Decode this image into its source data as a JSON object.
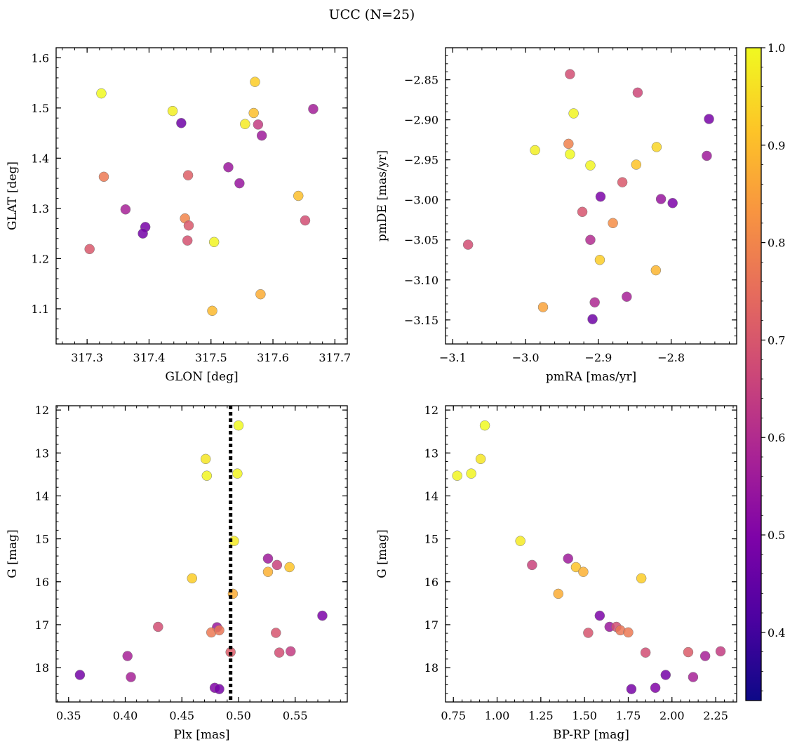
{
  "chart_data": {
    "type": "scatter",
    "title": "UCC (N=25)",
    "colorbar": {
      "colormap": "plasma",
      "range": [
        0.33,
        1.0
      ],
      "ticks": [
        "0.4",
        "0.5",
        "0.6",
        "0.7",
        "0.8",
        "0.9",
        "1.0"
      ],
      "tick_values": [
        0.4,
        0.5,
        0.6,
        0.7,
        0.8,
        0.9,
        1.0
      ]
    },
    "panels": [
      {
        "xlabel": "GLON [deg]",
        "ylabel": "GLAT [deg]",
        "xlim": [
          317.25,
          317.72
        ],
        "ylim": [
          1.03,
          1.62
        ],
        "inverted_y": false,
        "xticks": [
          {
            "v": 317.3,
            "label": "317.3"
          },
          {
            "v": 317.4,
            "label": "317.4"
          },
          {
            "v": 317.5,
            "label": "317.5"
          },
          {
            "v": 317.6,
            "label": "317.6"
          },
          {
            "v": 317.7,
            "label": "317.7"
          }
        ],
        "yticks": [
          {
            "v": 1.1,
            "label": "1.1"
          },
          {
            "v": 1.2,
            "label": "1.2"
          },
          {
            "v": 1.3,
            "label": "1.3"
          },
          {
            "v": 1.4,
            "label": "1.4"
          },
          {
            "v": 1.5,
            "label": "1.5"
          },
          {
            "v": 1.6,
            "label": "1.6"
          }
        ],
        "points": [
          {
            "x": 317.323,
            "y": 1.529,
            "c": 1.0
          },
          {
            "x": 317.438,
            "y": 1.494,
            "c": 0.98
          },
          {
            "x": 317.452,
            "y": 1.47,
            "c": 0.34
          },
          {
            "x": 317.571,
            "y": 1.552,
            "c": 0.91
          },
          {
            "x": 317.569,
            "y": 1.49,
            "c": 0.88
          },
          {
            "x": 317.555,
            "y": 1.468,
            "c": 0.97
          },
          {
            "x": 317.576,
            "y": 1.467,
            "c": 0.55
          },
          {
            "x": 317.582,
            "y": 1.445,
            "c": 0.45
          },
          {
            "x": 317.665,
            "y": 1.498,
            "c": 0.46
          },
          {
            "x": 317.528,
            "y": 1.382,
            "c": 0.44
          },
          {
            "x": 317.546,
            "y": 1.35,
            "c": 0.43
          },
          {
            "x": 317.327,
            "y": 1.363,
            "c": 0.72
          },
          {
            "x": 317.463,
            "y": 1.366,
            "c": 0.65
          },
          {
            "x": 317.362,
            "y": 1.298,
            "c": 0.47
          },
          {
            "x": 317.394,
            "y": 1.263,
            "c": 0.36
          },
          {
            "x": 317.39,
            "y": 1.25,
            "c": 0.35
          },
          {
            "x": 317.458,
            "y": 1.28,
            "c": 0.75
          },
          {
            "x": 317.464,
            "y": 1.266,
            "c": 0.63
          },
          {
            "x": 317.462,
            "y": 1.236,
            "c": 0.61
          },
          {
            "x": 317.505,
            "y": 1.233,
            "c": 0.99
          },
          {
            "x": 317.641,
            "y": 1.325,
            "c": 0.88
          },
          {
            "x": 317.652,
            "y": 1.276,
            "c": 0.6
          },
          {
            "x": 317.304,
            "y": 1.219,
            "c": 0.63
          },
          {
            "x": 317.58,
            "y": 1.129,
            "c": 0.84
          },
          {
            "x": 317.502,
            "y": 1.096,
            "c": 0.87
          }
        ]
      },
      {
        "xlabel": "pmRA [mas/yr]",
        "ylabel": "pmDE [mas/yr]",
        "xlim": [
          -3.11,
          -2.71
        ],
        "ylim": [
          -3.18,
          -2.81
        ],
        "inverted_y": false,
        "xticks": [
          {
            "v": -3.1,
            "label": "−3.1"
          },
          {
            "v": -3.0,
            "label": "−3.0"
          },
          {
            "v": -2.9,
            "label": "−2.9"
          },
          {
            "v": -2.8,
            "label": "−2.8"
          }
        ],
        "yticks": [
          {
            "v": -3.15,
            "label": "−3.15"
          },
          {
            "v": -3.1,
            "label": "−3.10"
          },
          {
            "v": -3.05,
            "label": "−3.05"
          },
          {
            "v": -3.0,
            "label": "−3.00"
          },
          {
            "v": -2.95,
            "label": "−2.95"
          },
          {
            "v": -2.9,
            "label": "−2.90"
          },
          {
            "v": -2.85,
            "label": "−2.85"
          }
        ],
        "points": [
          {
            "x": -2.939,
            "y": -2.843,
            "c": 0.6
          },
          {
            "x": -2.846,
            "y": -2.866,
            "c": 0.58
          },
          {
            "x": -2.934,
            "y": -2.892,
            "c": 0.99
          },
          {
            "x": -2.748,
            "y": -2.899,
            "c": 0.36
          },
          {
            "x": -2.987,
            "y": -2.938,
            "c": 0.98
          },
          {
            "x": -2.941,
            "y": -2.93,
            "c": 0.74
          },
          {
            "x": -2.939,
            "y": -2.943,
            "c": 1.0
          },
          {
            "x": -2.82,
            "y": -2.934,
            "c": 0.93
          },
          {
            "x": -2.751,
            "y": -2.945,
            "c": 0.45
          },
          {
            "x": -2.911,
            "y": -2.957,
            "c": 0.99
          },
          {
            "x": -2.848,
            "y": -2.956,
            "c": 0.89
          },
          {
            "x": -2.867,
            "y": -2.978,
            "c": 0.63
          },
          {
            "x": -2.897,
            "y": -2.996,
            "c": 0.37
          },
          {
            "x": -2.814,
            "y": -2.999,
            "c": 0.43
          },
          {
            "x": -2.798,
            "y": -3.004,
            "c": 0.37
          },
          {
            "x": -2.922,
            "y": -3.015,
            "c": 0.62
          },
          {
            "x": -2.88,
            "y": -3.029,
            "c": 0.77
          },
          {
            "x": -2.911,
            "y": -3.05,
            "c": 0.5
          },
          {
            "x": -3.079,
            "y": -3.056,
            "c": 0.6
          },
          {
            "x": -2.898,
            "y": -3.075,
            "c": 0.91
          },
          {
            "x": -2.821,
            "y": -3.088,
            "c": 0.86
          },
          {
            "x": -2.861,
            "y": -3.121,
            "c": 0.47
          },
          {
            "x": -2.905,
            "y": -3.128,
            "c": 0.49
          },
          {
            "x": -2.976,
            "y": -3.134,
            "c": 0.82
          },
          {
            "x": -2.908,
            "y": -3.149,
            "c": 0.34
          }
        ]
      },
      {
        "xlabel": "Plx [mas]",
        "ylabel": "G [mag]",
        "xlim": [
          0.339,
          0.596
        ],
        "ylim": [
          18.8,
          11.9
        ],
        "inverted_y": true,
        "vline": 0.493,
        "xticks": [
          {
            "v": 0.35,
            "label": "0.35"
          },
          {
            "v": 0.4,
            "label": "0.40"
          },
          {
            "v": 0.45,
            "label": "0.45"
          },
          {
            "v": 0.5,
            "label": "0.50"
          },
          {
            "v": 0.55,
            "label": "0.55"
          }
        ],
        "yticks": [
          {
            "v": 12,
            "label": "12"
          },
          {
            "v": 13,
            "label": "13"
          },
          {
            "v": 14,
            "label": "14"
          },
          {
            "v": 15,
            "label": "15"
          },
          {
            "v": 16,
            "label": "16"
          },
          {
            "v": 17,
            "label": "17"
          },
          {
            "v": 18,
            "label": "18"
          }
        ],
        "points": [
          {
            "x": 0.5,
            "y": 12.36,
            "c": 1.0
          },
          {
            "x": 0.471,
            "y": 13.14,
            "c": 0.96
          },
          {
            "x": 0.472,
            "y": 13.53,
            "c": 0.99
          },
          {
            "x": 0.499,
            "y": 13.48,
            "c": 0.99
          },
          {
            "x": 0.496,
            "y": 15.05,
            "c": 0.97
          },
          {
            "x": 0.526,
            "y": 15.46,
            "c": 0.45
          },
          {
            "x": 0.534,
            "y": 15.61,
            "c": 0.57
          },
          {
            "x": 0.545,
            "y": 15.66,
            "c": 0.89
          },
          {
            "x": 0.526,
            "y": 15.77,
            "c": 0.85
          },
          {
            "x": 0.459,
            "y": 15.92,
            "c": 0.91
          },
          {
            "x": 0.495,
            "y": 16.28,
            "c": 0.84
          },
          {
            "x": 0.574,
            "y": 16.79,
            "c": 0.37
          },
          {
            "x": 0.429,
            "y": 17.05,
            "c": 0.6
          },
          {
            "x": 0.481,
            "y": 17.06,
            "c": 0.44
          },
          {
            "x": 0.476,
            "y": 17.18,
            "c": 0.72
          },
          {
            "x": 0.483,
            "y": 17.13,
            "c": 0.71
          },
          {
            "x": 0.533,
            "y": 17.19,
            "c": 0.62
          },
          {
            "x": 0.402,
            "y": 17.73,
            "c": 0.47
          },
          {
            "x": 0.493,
            "y": 17.64,
            "c": 0.64
          },
          {
            "x": 0.536,
            "y": 17.65,
            "c": 0.6
          },
          {
            "x": 0.546,
            "y": 17.62,
            "c": 0.55
          },
          {
            "x": 0.36,
            "y": 18.17,
            "c": 0.35
          },
          {
            "x": 0.405,
            "y": 18.22,
            "c": 0.47
          },
          {
            "x": 0.479,
            "y": 18.47,
            "c": 0.38
          },
          {
            "x": 0.483,
            "y": 18.5,
            "c": 0.36
          }
        ]
      },
      {
        "xlabel": "BP-RP [mag]",
        "ylabel": "G [mag]",
        "xlim": [
          0.705,
          2.37
        ],
        "ylim": [
          18.8,
          11.9
        ],
        "inverted_y": true,
        "xticks": [
          {
            "v": 0.75,
            "label": "0.75"
          },
          {
            "v": 1.0,
            "label": "1.00"
          },
          {
            "v": 1.25,
            "label": "1.25"
          },
          {
            "v": 1.5,
            "label": "1.50"
          },
          {
            "v": 1.75,
            "label": "1.75"
          },
          {
            "v": 2.0,
            "label": "2.00"
          },
          {
            "v": 2.25,
            "label": "2.25"
          }
        ],
        "yticks": [
          {
            "v": 12,
            "label": "12"
          },
          {
            "v": 13,
            "label": "13"
          },
          {
            "v": 14,
            "label": "14"
          },
          {
            "v": 15,
            "label": "15"
          },
          {
            "v": 16,
            "label": "16"
          },
          {
            "v": 17,
            "label": "17"
          },
          {
            "v": 18,
            "label": "18"
          }
        ],
        "points": [
          {
            "x": 0.93,
            "y": 12.36,
            "c": 1.0
          },
          {
            "x": 0.906,
            "y": 13.14,
            "c": 0.96
          },
          {
            "x": 0.852,
            "y": 13.48,
            "c": 0.99
          },
          {
            "x": 0.772,
            "y": 13.53,
            "c": 0.99
          },
          {
            "x": 1.133,
            "y": 15.05,
            "c": 0.97
          },
          {
            "x": 1.406,
            "y": 15.46,
            "c": 0.45
          },
          {
            "x": 1.2,
            "y": 15.61,
            "c": 0.57
          },
          {
            "x": 1.451,
            "y": 15.66,
            "c": 0.89
          },
          {
            "x": 1.493,
            "y": 15.77,
            "c": 0.85
          },
          {
            "x": 1.825,
            "y": 15.92,
            "c": 0.91
          },
          {
            "x": 1.35,
            "y": 16.28,
            "c": 0.84
          },
          {
            "x": 1.587,
            "y": 16.79,
            "c": 0.37
          },
          {
            "x": 1.643,
            "y": 17.05,
            "c": 0.44
          },
          {
            "x": 1.682,
            "y": 17.05,
            "c": 0.6
          },
          {
            "x": 1.705,
            "y": 17.13,
            "c": 0.71
          },
          {
            "x": 1.75,
            "y": 17.18,
            "c": 0.72
          },
          {
            "x": 1.521,
            "y": 17.19,
            "c": 0.62
          },
          {
            "x": 1.849,
            "y": 17.65,
            "c": 0.6
          },
          {
            "x": 2.093,
            "y": 17.64,
            "c": 0.64
          },
          {
            "x": 2.19,
            "y": 17.73,
            "c": 0.47
          },
          {
            "x": 2.278,
            "y": 17.62,
            "c": 0.55
          },
          {
            "x": 1.964,
            "y": 18.17,
            "c": 0.35
          },
          {
            "x": 2.121,
            "y": 18.22,
            "c": 0.47
          },
          {
            "x": 1.905,
            "y": 18.47,
            "c": 0.38
          },
          {
            "x": 1.768,
            "y": 18.5,
            "c": 0.36
          }
        ]
      }
    ]
  }
}
